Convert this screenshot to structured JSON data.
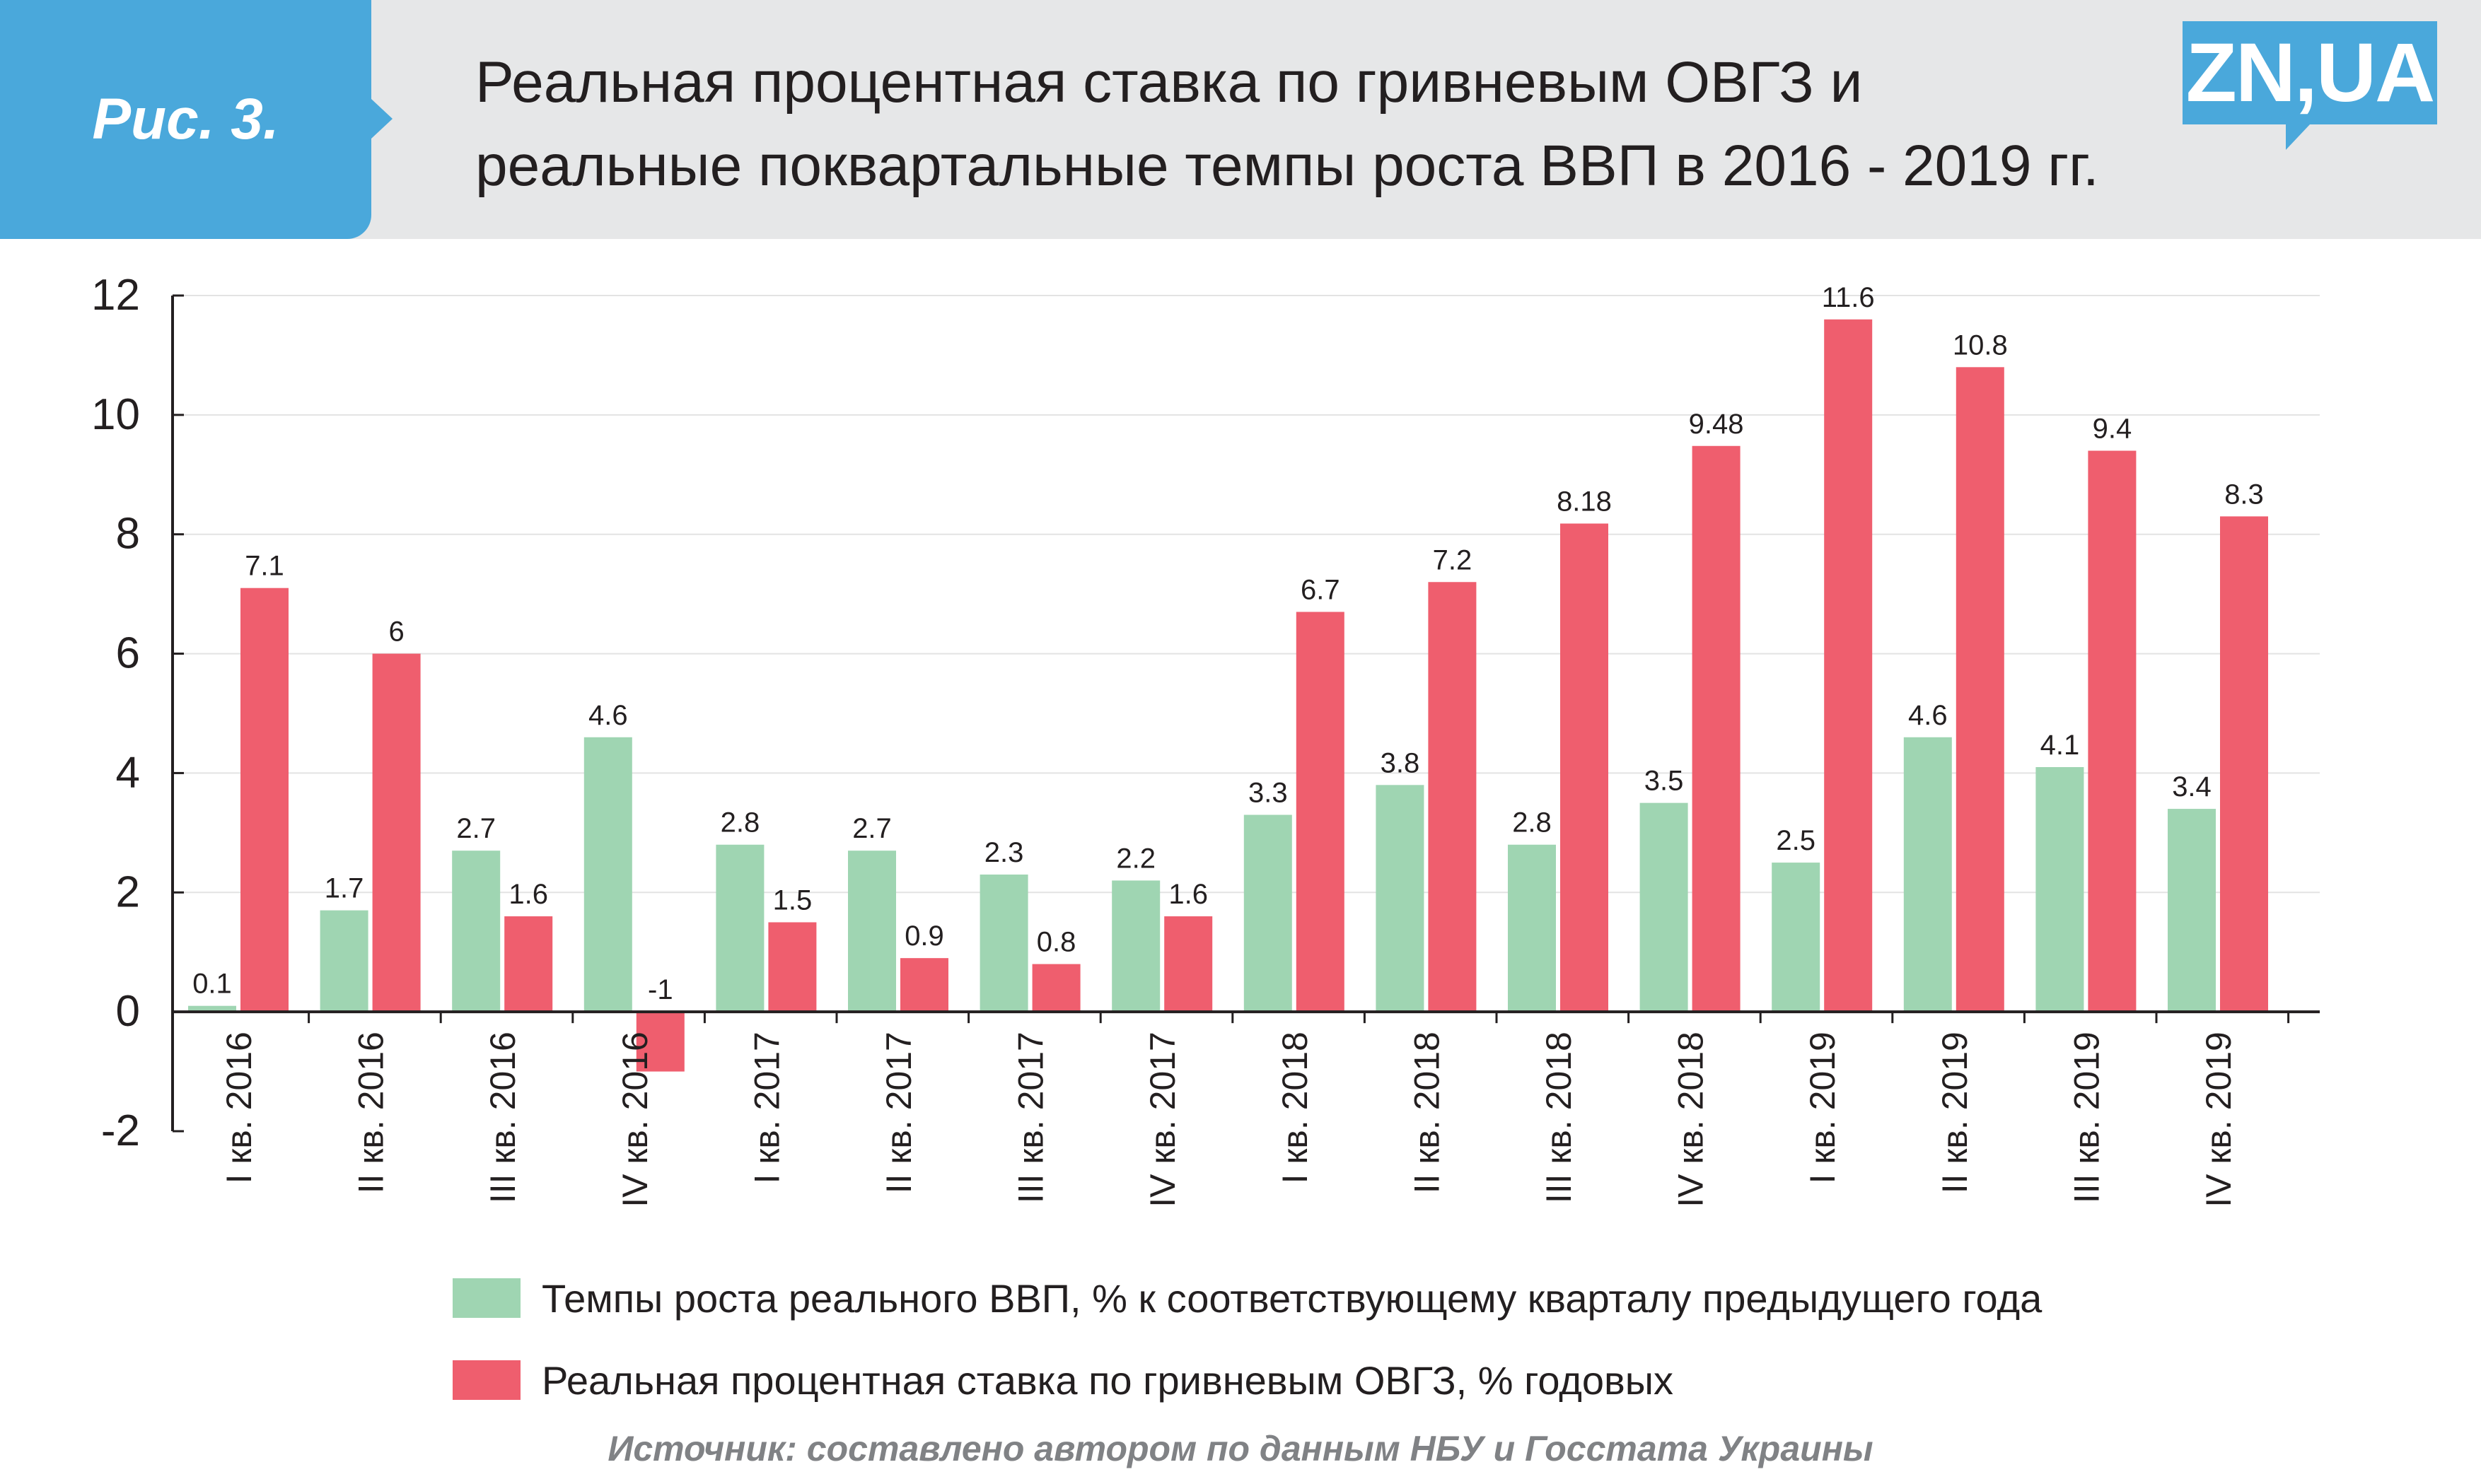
{
  "header": {
    "figure_label": "Рис. 3.",
    "title_line1": "Реальная процентная ставка по гривневым ОВГЗ и",
    "title_line2": "реальные поквартальные темпы роста ВВП в 2016 - 2019 гг.",
    "logo_text": "ZN,UA"
  },
  "colors": {
    "gdp_series": "#9fd5b2",
    "rate_series": "#ef5e6e",
    "header_band": "#e6e7e8",
    "badge": "#4aa8db"
  },
  "chart_data": {
    "type": "bar",
    "categories": [
      "I кв. 2016",
      "II кв. 2016",
      "III кв. 2016",
      "IV кв. 2016",
      "I кв. 2017",
      "II кв. 2017",
      "III кв. 2017",
      "IV кв. 2017",
      "I кв. 2018",
      "II кв. 2018",
      "III кв. 2018",
      "IV кв. 2018",
      "I кв. 2019",
      "II кв. 2019",
      "III кв. 2019",
      "IV кв. 2019"
    ],
    "series": [
      {
        "name": "Темпы роста реального ВВП, % к соответствующему кварталу предыдущего года",
        "values": [
          0.1,
          1.7,
          2.7,
          4.6,
          2.8,
          2.7,
          2.3,
          2.2,
          3.3,
          3.8,
          2.8,
          3.5,
          2.5,
          4.6,
          4.1,
          3.4
        ],
        "labels": [
          "0.1",
          "1.7",
          "2.7",
          "4.6",
          "2.8",
          "2.7",
          "2.3",
          "2.2",
          "3.3",
          "3.8",
          "2.8",
          "3.5",
          "2.5",
          "4.6",
          "4.1",
          "3.4"
        ]
      },
      {
        "name": "Реальная процентная ставка по гривневым ОВГЗ, % годовых",
        "values": [
          7.1,
          6,
          1.6,
          -1,
          1.5,
          0.9,
          0.8,
          1.6,
          6.7,
          7.2,
          8.18,
          9.48,
          11.6,
          10.8,
          9.4,
          8.3
        ],
        "labels": [
          "7.1",
          "6",
          "1.6",
          "-1",
          "1.5",
          "0.9",
          "0.8",
          "1.6",
          "6.7",
          "7.2",
          "8.18",
          "9.48",
          "11.6",
          "10.8",
          "9.4",
          "8.3"
        ]
      }
    ],
    "yticks": [
      "-2",
      "0",
      "2",
      "4",
      "6",
      "8",
      "10",
      "12"
    ],
    "ylim": [
      -2,
      12
    ],
    "grid": true,
    "legend": "bottom"
  },
  "source_note": "Источник: составлено автором по данным НБУ и Госстата Украины"
}
